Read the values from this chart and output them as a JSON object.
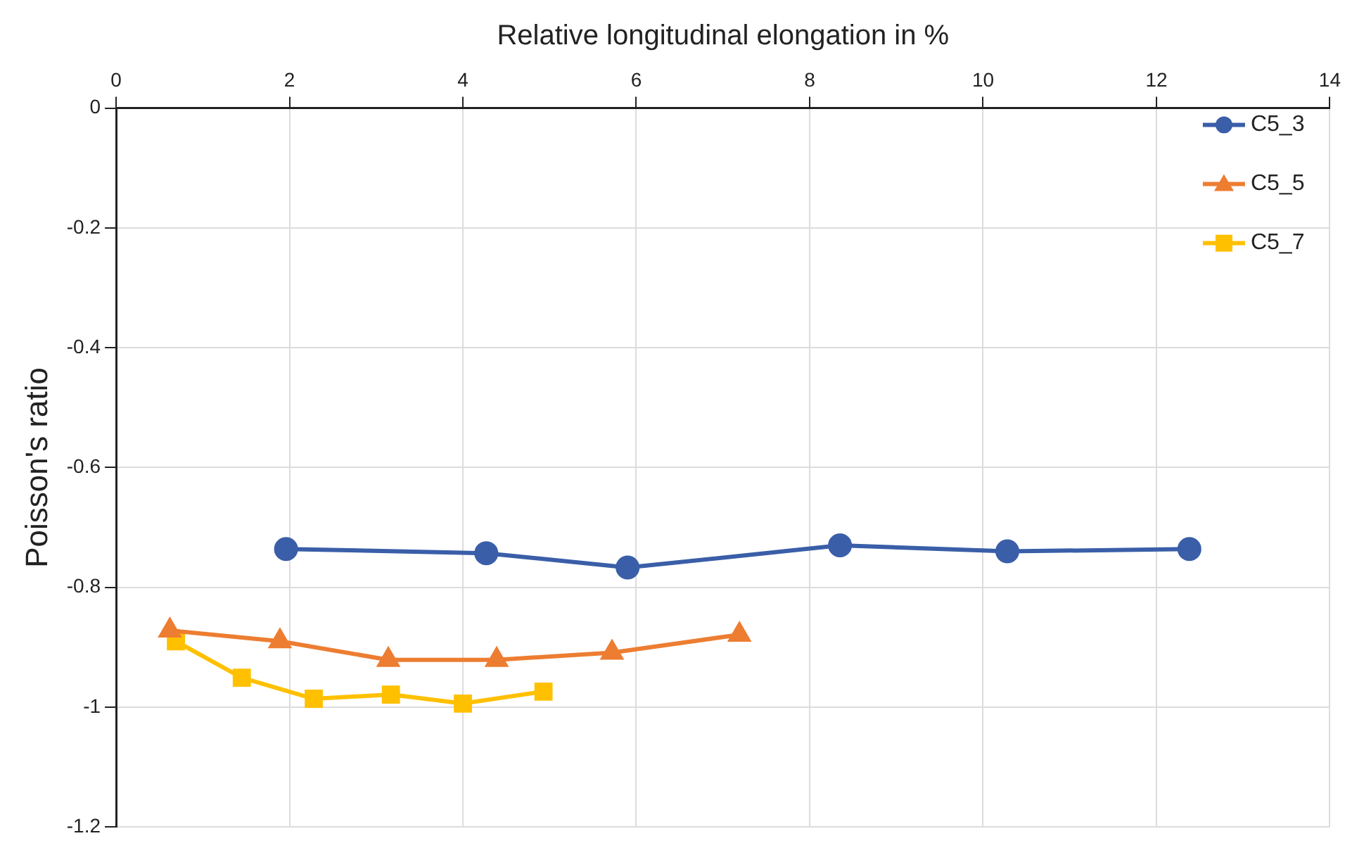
{
  "chart_data": {
    "type": "line",
    "xlabel": "Relative longitudinal elongation in %",
    "ylabel": "Poisson's ratio",
    "xlim": [
      0,
      14
    ],
    "xticks": [
      0,
      2,
      4,
      6,
      8,
      10,
      12,
      14
    ],
    "ylim": [
      -1.2,
      0
    ],
    "yticks": [
      -1.2,
      -1,
      -0.8,
      -0.6,
      -0.4,
      -0.2,
      0
    ],
    "grid": true,
    "legend": "top right",
    "line_style": "solid",
    "series": [
      {
        "name": "C5_3",
        "color": "#3a5ea8",
        "marker": "circle",
        "x": [
          1.96,
          4.27,
          5.9,
          8.35,
          10.28,
          12.38
        ],
        "values": [
          -0.736,
          -0.743,
          -0.767,
          -0.73,
          -0.74,
          -0.736
        ]
      },
      {
        "name": "C5_5",
        "color": "#ed7d31",
        "marker": "triangle",
        "x": [
          0.62,
          1.89,
          3.14,
          4.39,
          5.72,
          7.19
        ],
        "values": [
          -0.872,
          -0.89,
          -0.921,
          -0.921,
          -0.909,
          -0.879
        ]
      },
      {
        "name": "C5_7",
        "color": "#ffc000",
        "marker": "square",
        "x": [
          0.69,
          1.45,
          2.28,
          3.17,
          4.0,
          4.93
        ],
        "values": [
          -0.89,
          -0.951,
          -0.986,
          -0.979,
          -0.994,
          -0.974
        ]
      }
    ]
  }
}
